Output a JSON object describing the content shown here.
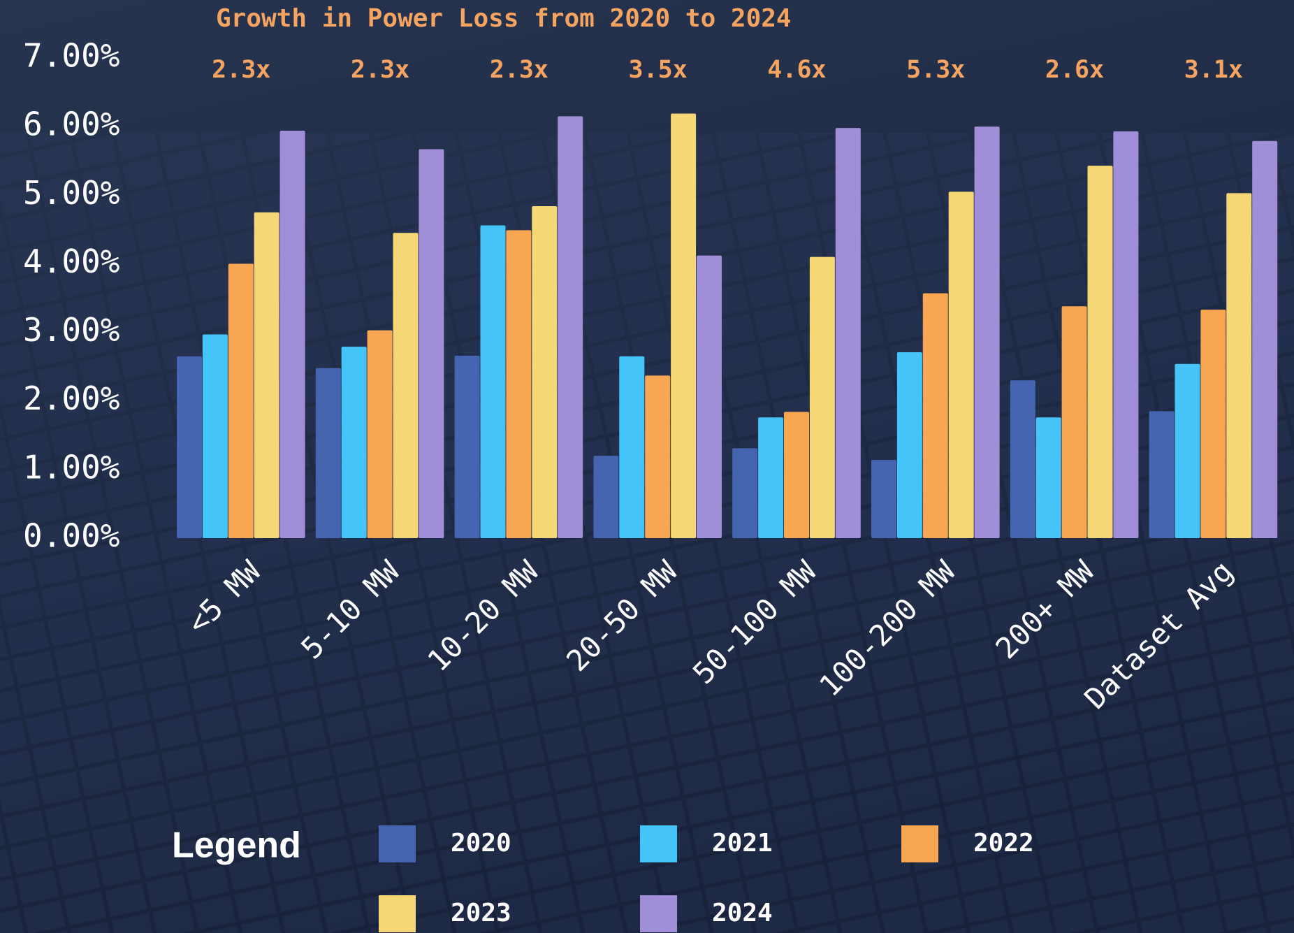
{
  "chart_data": {
    "type": "bar",
    "title": "Growth in Power Loss from 2020 to 2024",
    "categories": [
      "<5 MW",
      "5-10 MW",
      "10-20 MW",
      "20-50 MW",
      "50-100 MW",
      "100-200 MW",
      "200+ MW",
      "Dataset Avg"
    ],
    "annotations": [
      "2.3x",
      "2.3x",
      "2.3x",
      "3.5x",
      "4.6x",
      "5.3x",
      "2.6x",
      "3.1x"
    ],
    "series": [
      {
        "name": "2020",
        "color": "#4565b0",
        "values": [
          2.65,
          2.48,
          2.66,
          1.2,
          1.31,
          1.14,
          2.3,
          1.85
        ]
      },
      {
        "name": "2021",
        "color": "#45c4fa",
        "values": [
          2.97,
          2.79,
          4.56,
          2.65,
          1.76,
          2.71,
          1.76,
          2.54
        ]
      },
      {
        "name": "2022",
        "color": "#f9a653",
        "values": [
          4.0,
          3.03,
          4.49,
          2.37,
          1.84,
          3.57,
          3.38,
          3.33
        ]
      },
      {
        "name": "2023",
        "color": "#f6d776",
        "values": [
          4.75,
          4.45,
          4.84,
          6.19,
          4.1,
          5.05,
          5.43,
          5.03
        ]
      },
      {
        "name": "2024",
        "color": "#a08fd8",
        "values": [
          5.94,
          5.67,
          6.15,
          4.12,
          5.98,
          6.0,
          5.93,
          5.79
        ]
      }
    ],
    "ylim": [
      0,
      7
    ],
    "yticks": [
      {
        "value": 0,
        "label": "0.00%"
      },
      {
        "value": 1,
        "label": "1.00%"
      },
      {
        "value": 2,
        "label": "2.00%"
      },
      {
        "value": 3,
        "label": "3.00%"
      },
      {
        "value": 4,
        "label": "4.00%"
      },
      {
        "value": 5,
        "label": "5.00%"
      },
      {
        "value": 6,
        "label": "6.00%"
      },
      {
        "value": 7,
        "label": "7.00%"
      }
    ],
    "legend_title": "Legend",
    "grid": false
  }
}
